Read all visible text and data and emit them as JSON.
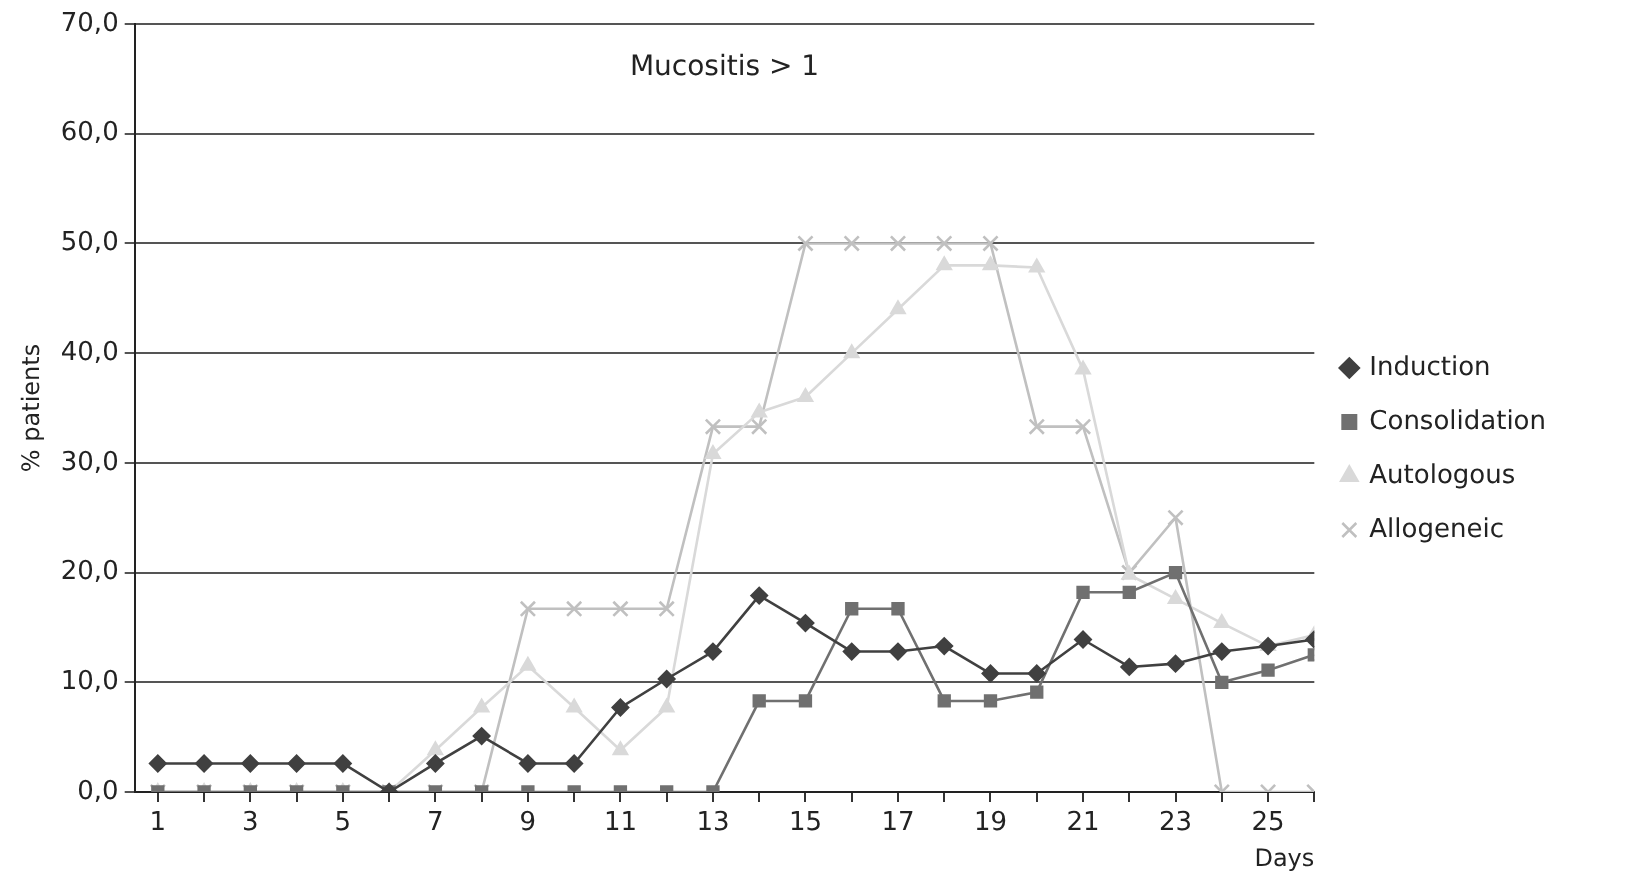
{
  "chart_data": {
    "type": "line",
    "title": "Mucositis > 1",
    "xlabel": "Days",
    "ylabel": "% patients",
    "x": [
      1,
      2,
      3,
      4,
      5,
      6,
      7,
      8,
      9,
      10,
      11,
      12,
      13,
      14,
      15,
      16,
      17,
      18,
      19,
      20,
      21,
      22,
      23,
      24,
      25,
      26
    ],
    "xlim": [
      0.5,
      26
    ],
    "xticks": [
      1,
      {
        "value": 2,
        "label": null
      },
      3,
      {
        "value": 4,
        "label": null
      },
      5,
      {
        "value": 6,
        "label": null
      },
      7,
      {
        "value": 8,
        "label": null
      },
      9,
      {
        "value": 10,
        "label": null
      },
      11,
      {
        "value": 12,
        "label": null
      },
      13,
      {
        "value": 14,
        "label": null
      },
      15,
      {
        "value": 16,
        "label": null
      },
      17,
      {
        "value": 18,
        "label": null
      },
      19,
      {
        "value": 20,
        "label": null
      },
      21,
      {
        "value": 22,
        "label": null
      },
      23,
      {
        "value": 24,
        "label": null
      },
      25,
      {
        "value": 26,
        "label": null
      }
    ],
    "series": [
      {
        "name": "Induction",
        "color": "#404040",
        "marker": "diamond",
        "values": [
          2.6,
          2.6,
          2.6,
          2.6,
          2.6,
          0,
          2.6,
          5.1,
          2.6,
          2.6,
          7.7,
          10.3,
          12.8,
          17.9,
          15.4,
          12.8,
          12.8,
          13.3,
          10.8,
          10.8,
          13.9,
          11.4,
          11.7,
          12.8,
          13.3,
          13.9
        ]
      },
      {
        "name": "Consolidation",
        "color": "#707070",
        "marker": "square",
        "values": [
          0,
          0,
          0,
          0,
          0,
          0,
          0,
          0,
          0,
          0,
          0,
          0,
          0,
          8.3,
          8.3,
          16.7,
          16.7,
          8.3,
          8.3,
          9.1,
          18.2,
          18.2,
          20.0,
          10.0,
          11.1,
          12.5
        ]
      },
      {
        "name": "Autologous",
        "color": "#d9d9d9",
        "marker": "triangle",
        "values": [
          0,
          0,
          0,
          0,
          0,
          0,
          3.8,
          7.7,
          11.5,
          7.7,
          3.8,
          7.7,
          30.8,
          34.6,
          36.0,
          40.0,
          44.0,
          48.0,
          48.0,
          47.8,
          38.5,
          19.8,
          17.6,
          15.4,
          13.3,
          14.3
        ]
      },
      {
        "name": "Allogeneic",
        "color": "#c0c0c0",
        "marker": "cross",
        "values": [
          0,
          0,
          0,
          0,
          0,
          0,
          0,
          0,
          16.7,
          16.7,
          16.7,
          16.7,
          33.3,
          33.3,
          50,
          50,
          50,
          50,
          50,
          33.3,
          33.3,
          20,
          25,
          0,
          0,
          0
        ]
      }
    ],
    "ylim": [
      0,
      70
    ],
    "yticks": [
      {
        "value": 0,
        "label": "0,0"
      },
      {
        "value": 10,
        "label": "10,0"
      },
      {
        "value": 20,
        "label": "20,0"
      },
      {
        "value": 30,
        "label": "30,0"
      },
      {
        "value": 40,
        "label": "40,0"
      },
      {
        "value": 50,
        "label": "50,0"
      },
      {
        "value": 60,
        "label": "60,0"
      },
      {
        "value": 70,
        "label": "70,0"
      }
    ],
    "grid": "y",
    "legend": "right"
  }
}
